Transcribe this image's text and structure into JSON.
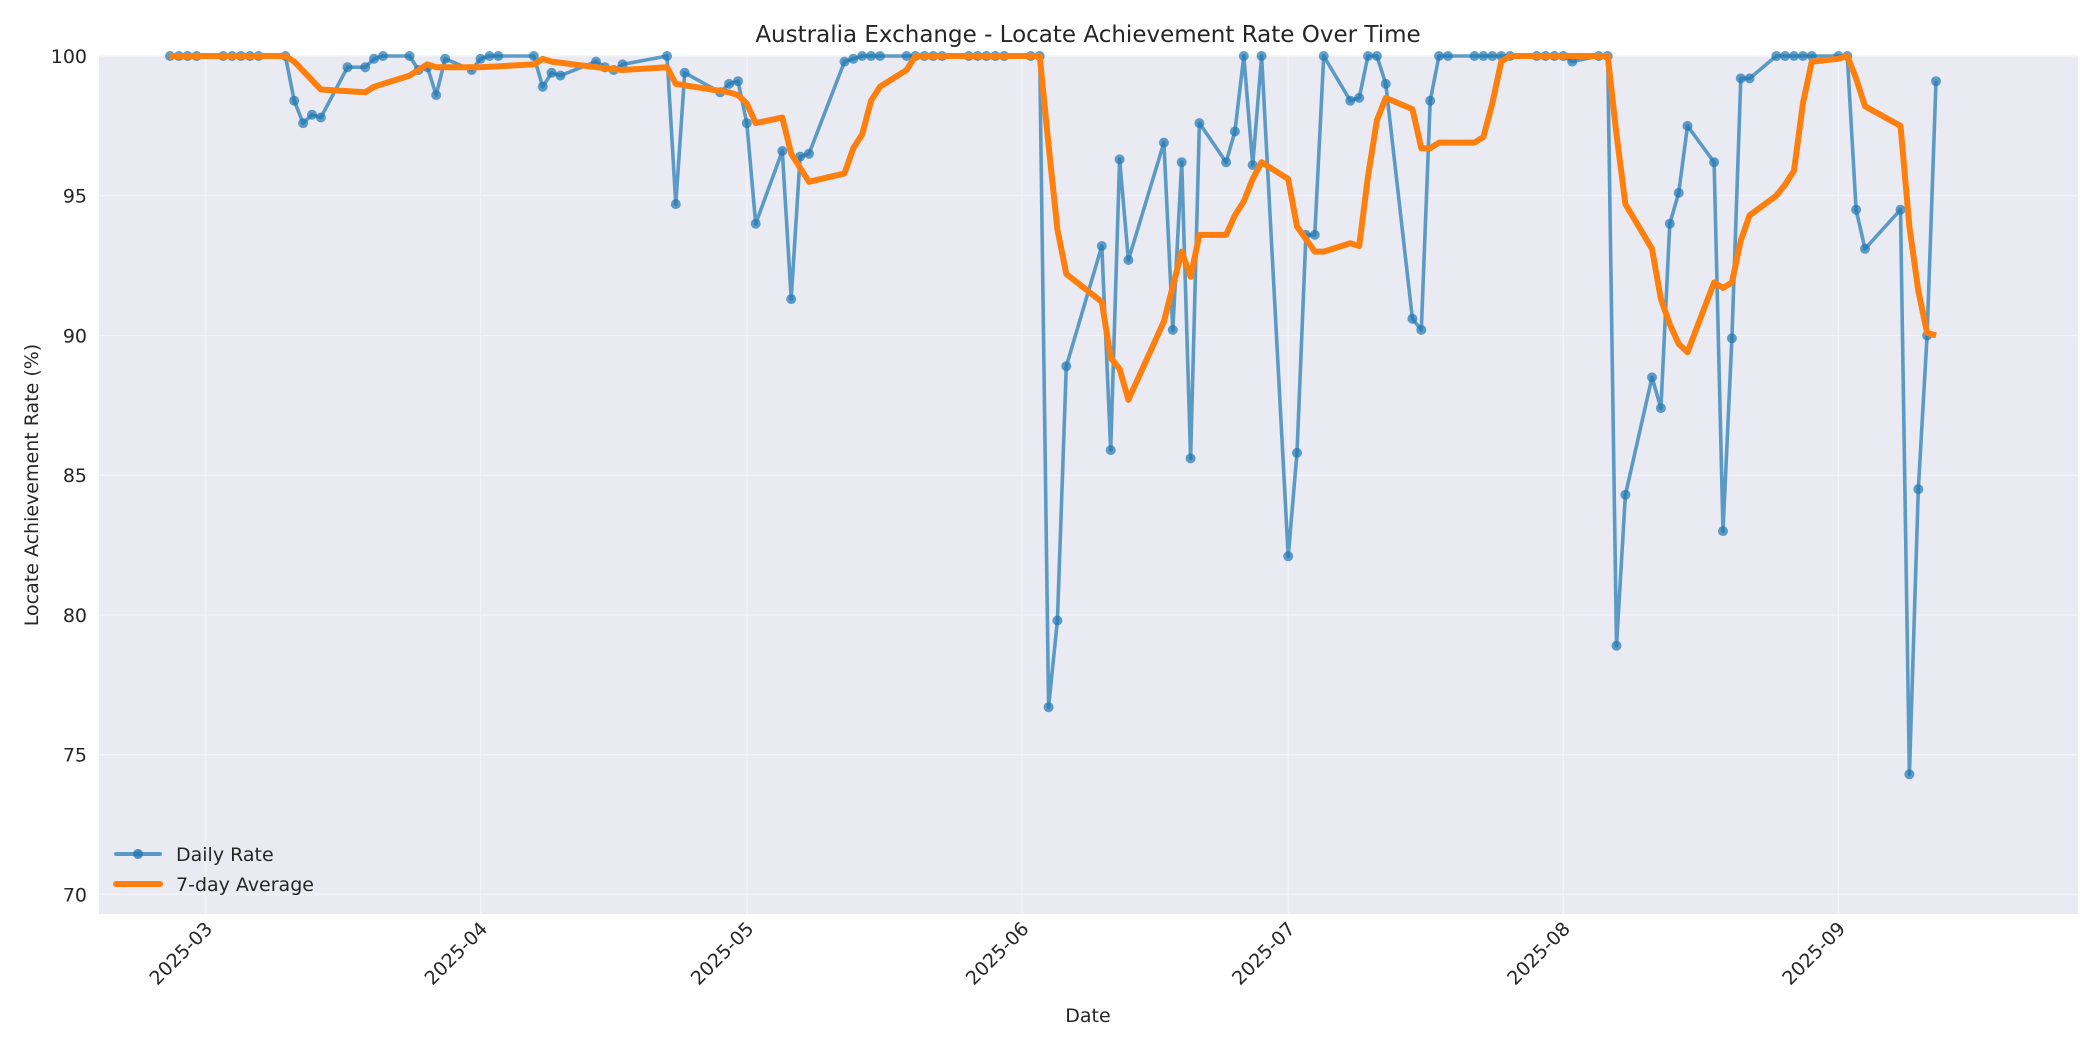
{
  "chart_data": {
    "type": "line",
    "title": "Australia Exchange - Locate Achievement Rate Over Time",
    "xlabel": "Date",
    "ylabel": "Locate Achievement Rate (%)",
    "ylim": [
      69.3,
      100
    ],
    "yticks": [
      70,
      75,
      80,
      85,
      90,
      95,
      100
    ],
    "xticks": [
      "2025-03",
      "2025-04",
      "2025-05",
      "2025-06",
      "2025-07",
      "2025-08",
      "2025-09"
    ],
    "xlim": [
      "2025-02-17",
      "2025-09-28"
    ],
    "grid": true,
    "legend_position": "lower left",
    "series": [
      {
        "name": "Daily Rate",
        "color": "#1f77b4",
        "marker": "circle",
        "points": [
          [
            "2025-02-25",
            100
          ],
          [
            "2025-02-26",
            100
          ],
          [
            "2025-02-27",
            100
          ],
          [
            "2025-02-28",
            100
          ],
          [
            "2025-03-03",
            100
          ],
          [
            "2025-03-04",
            100
          ],
          [
            "2025-03-05",
            100
          ],
          [
            "2025-03-06",
            100
          ],
          [
            "2025-03-07",
            100
          ],
          [
            "2025-03-10",
            100
          ],
          [
            "2025-03-11",
            98.4
          ],
          [
            "2025-03-12",
            97.6
          ],
          [
            "2025-03-13",
            97.9
          ],
          [
            "2025-03-14",
            97.8
          ],
          [
            "2025-03-17",
            99.6
          ],
          [
            "2025-03-19",
            99.6
          ],
          [
            "2025-03-20",
            99.9
          ],
          [
            "2025-03-21",
            100
          ],
          [
            "2025-03-24",
            100
          ],
          [
            "2025-03-25",
            99.5
          ],
          [
            "2025-03-26",
            99.6
          ],
          [
            "2025-03-27",
            98.6
          ],
          [
            "2025-03-28",
            99.9
          ],
          [
            "2025-03-31",
            99.5
          ],
          [
            "2025-04-01",
            99.9
          ],
          [
            "2025-04-02",
            100
          ],
          [
            "2025-04-03",
            100
          ],
          [
            "2025-04-07",
            100
          ],
          [
            "2025-04-08",
            98.9
          ],
          [
            "2025-04-09",
            99.4
          ],
          [
            "2025-04-10",
            99.3
          ],
          [
            "2025-04-14",
            99.8
          ],
          [
            "2025-04-15",
            99.6
          ],
          [
            "2025-04-16",
            99.5
          ],
          [
            "2025-04-17",
            99.7
          ],
          [
            "2025-04-22",
            100
          ],
          [
            "2025-04-23",
            94.7
          ],
          [
            "2025-04-24",
            99.4
          ],
          [
            "2025-04-28",
            98.7
          ],
          [
            "2025-04-29",
            99.0
          ],
          [
            "2025-04-30",
            99.1
          ],
          [
            "2025-05-01",
            97.6
          ],
          [
            "2025-05-02",
            94.0
          ],
          [
            "2025-05-05",
            96.6
          ],
          [
            "2025-05-06",
            91.3
          ],
          [
            "2025-05-07",
            96.4
          ],
          [
            "2025-05-08",
            96.5
          ],
          [
            "2025-05-12",
            99.8
          ],
          [
            "2025-05-13",
            99.9
          ],
          [
            "2025-05-14",
            100
          ],
          [
            "2025-05-15",
            100
          ],
          [
            "2025-05-16",
            100
          ],
          [
            "2025-05-19",
            100
          ],
          [
            "2025-05-20",
            100
          ],
          [
            "2025-05-21",
            100
          ],
          [
            "2025-05-22",
            100
          ],
          [
            "2025-05-23",
            100
          ],
          [
            "2025-05-26",
            100
          ],
          [
            "2025-05-27",
            100
          ],
          [
            "2025-05-28",
            100
          ],
          [
            "2025-05-29",
            100
          ],
          [
            "2025-05-30",
            100
          ],
          [
            "2025-06-02",
            100
          ],
          [
            "2025-06-03",
            100
          ],
          [
            "2025-06-04",
            76.7
          ],
          [
            "2025-06-05",
            79.8
          ],
          [
            "2025-06-06",
            88.9
          ],
          [
            "2025-06-10",
            93.2
          ],
          [
            "2025-06-11",
            85.9
          ],
          [
            "2025-06-12",
            96.3
          ],
          [
            "2025-06-13",
            92.7
          ],
          [
            "2025-06-17",
            96.9
          ],
          [
            "2025-06-18",
            90.2
          ],
          [
            "2025-06-19",
            96.2
          ],
          [
            "2025-06-20",
            85.6
          ],
          [
            "2025-06-21",
            97.6
          ],
          [
            "2025-06-24",
            96.2
          ],
          [
            "2025-06-25",
            97.3
          ],
          [
            "2025-06-26",
            100
          ],
          [
            "2025-06-27",
            96.1
          ],
          [
            "2025-06-28",
            100
          ],
          [
            "2025-07-01",
            82.1
          ],
          [
            "2025-07-02",
            85.8
          ],
          [
            "2025-07-03",
            93.6
          ],
          [
            "2025-07-04",
            93.6
          ],
          [
            "2025-07-05",
            100
          ],
          [
            "2025-07-08",
            98.4
          ],
          [
            "2025-07-09",
            98.5
          ],
          [
            "2025-07-10",
            100
          ],
          [
            "2025-07-11",
            100
          ],
          [
            "2025-07-12",
            99.0
          ],
          [
            "2025-07-15",
            90.6
          ],
          [
            "2025-07-16",
            90.2
          ],
          [
            "2025-07-17",
            98.4
          ],
          [
            "2025-07-18",
            100
          ],
          [
            "2025-07-19",
            100
          ],
          [
            "2025-07-22",
            100
          ],
          [
            "2025-07-23",
            100
          ],
          [
            "2025-07-24",
            100
          ],
          [
            "2025-07-25",
            100
          ],
          [
            "2025-07-26",
            100
          ],
          [
            "2025-07-29",
            100
          ],
          [
            "2025-07-30",
            100
          ],
          [
            "2025-07-31",
            100
          ],
          [
            "2025-08-01",
            100
          ],
          [
            "2025-08-02",
            99.8
          ],
          [
            "2025-08-05",
            100
          ],
          [
            "2025-08-06",
            100
          ],
          [
            "2025-08-07",
            78.9
          ],
          [
            "2025-08-08",
            84.3
          ],
          [
            "2025-08-11",
            88.5
          ],
          [
            "2025-08-12",
            87.4
          ],
          [
            "2025-08-13",
            94.0
          ],
          [
            "2025-08-14",
            95.1
          ],
          [
            "2025-08-15",
            97.5
          ],
          [
            "2025-08-18",
            96.2
          ],
          [
            "2025-08-19",
            83.0
          ],
          [
            "2025-08-20",
            89.9
          ],
          [
            "2025-08-21",
            99.2
          ],
          [
            "2025-08-22",
            99.2
          ],
          [
            "2025-08-25",
            100
          ],
          [
            "2025-08-26",
            100
          ],
          [
            "2025-08-27",
            100
          ],
          [
            "2025-08-28",
            100
          ],
          [
            "2025-08-29",
            100
          ],
          [
            "2025-09-01",
            100
          ],
          [
            "2025-09-02",
            100
          ],
          [
            "2025-09-03",
            94.5
          ],
          [
            "2025-09-04",
            93.1
          ],
          [
            "2025-09-08",
            94.5
          ],
          [
            "2025-09-09",
            74.3
          ],
          [
            "2025-09-10",
            84.5
          ],
          [
            "2025-09-11",
            90.0
          ],
          [
            "2025-09-12",
            99.1
          ]
        ]
      },
      {
        "name": "7-day Average",
        "color": "#ff7f0e",
        "marker": "none",
        "points": [
          [
            "2025-02-25",
            100
          ],
          [
            "2025-03-10",
            100
          ],
          [
            "2025-03-11",
            99.8
          ],
          [
            "2025-03-14",
            98.8
          ],
          [
            "2025-03-19",
            98.7
          ],
          [
            "2025-03-20",
            98.9
          ],
          [
            "2025-03-24",
            99.3
          ],
          [
            "2025-03-26",
            99.7
          ],
          [
            "2025-03-27",
            99.6
          ],
          [
            "2025-04-01",
            99.6
          ],
          [
            "2025-04-07",
            99.7
          ],
          [
            "2025-04-08",
            99.9
          ],
          [
            "2025-04-09",
            99.8
          ],
          [
            "2025-04-14",
            99.6
          ],
          [
            "2025-04-17",
            99.5
          ],
          [
            "2025-04-22",
            99.6
          ],
          [
            "2025-04-23",
            99.0
          ],
          [
            "2025-04-29",
            98.7
          ],
          [
            "2025-04-30",
            98.6
          ],
          [
            "2025-05-01",
            98.3
          ],
          [
            "2025-05-02",
            97.6
          ],
          [
            "2025-05-05",
            97.8
          ],
          [
            "2025-05-06",
            96.5
          ],
          [
            "2025-05-08",
            95.5
          ],
          [
            "2025-05-12",
            95.8
          ],
          [
            "2025-05-13",
            96.7
          ],
          [
            "2025-05-14",
            97.2
          ],
          [
            "2025-05-15",
            98.4
          ],
          [
            "2025-05-16",
            98.9
          ],
          [
            "2025-05-19",
            99.5
          ],
          [
            "2025-05-20",
            100
          ],
          [
            "2025-06-03",
            100
          ],
          [
            "2025-06-04",
            96.8
          ],
          [
            "2025-06-05",
            93.8
          ],
          [
            "2025-06-06",
            92.2
          ],
          [
            "2025-06-10",
            91.2
          ],
          [
            "2025-06-11",
            89.2
          ],
          [
            "2025-06-12",
            88.8
          ],
          [
            "2025-06-13",
            87.7
          ],
          [
            "2025-06-17",
            90.5
          ],
          [
            "2025-06-19",
            93.0
          ],
          [
            "2025-06-20",
            92.1
          ],
          [
            "2025-06-21",
            93.6
          ],
          [
            "2025-06-24",
            93.6
          ],
          [
            "2025-06-25",
            94.3
          ],
          [
            "2025-06-26",
            94.8
          ],
          [
            "2025-06-27",
            95.6
          ],
          [
            "2025-06-28",
            96.2
          ],
          [
            "2025-07-01",
            95.6
          ],
          [
            "2025-07-02",
            93.9
          ],
          [
            "2025-07-04",
            93.0
          ],
          [
            "2025-07-05",
            93.0
          ],
          [
            "2025-07-08",
            93.3
          ],
          [
            "2025-07-09",
            93.2
          ],
          [
            "2025-07-10",
            95.7
          ],
          [
            "2025-07-11",
            97.7
          ],
          [
            "2025-07-12",
            98.5
          ],
          [
            "2025-07-15",
            98.1
          ],
          [
            "2025-07-16",
            96.7
          ],
          [
            "2025-07-17",
            96.7
          ],
          [
            "2025-07-18",
            96.9
          ],
          [
            "2025-07-22",
            96.9
          ],
          [
            "2025-07-23",
            97.1
          ],
          [
            "2025-07-24",
            98.3
          ],
          [
            "2025-07-25",
            99.8
          ],
          [
            "2025-07-26",
            100
          ],
          [
            "2025-08-06",
            100
          ],
          [
            "2025-08-07",
            97.2
          ],
          [
            "2025-08-08",
            94.7
          ],
          [
            "2025-08-11",
            93.1
          ],
          [
            "2025-08-12",
            91.3
          ],
          [
            "2025-08-13",
            90.4
          ],
          [
            "2025-08-14",
            89.7
          ],
          [
            "2025-08-15",
            89.4
          ],
          [
            "2025-08-18",
            91.9
          ],
          [
            "2025-08-19",
            91.7
          ],
          [
            "2025-08-20",
            91.9
          ],
          [
            "2025-08-21",
            93.4
          ],
          [
            "2025-08-22",
            94.3
          ],
          [
            "2025-08-25",
            95.0
          ],
          [
            "2025-08-26",
            95.4
          ],
          [
            "2025-08-27",
            95.9
          ],
          [
            "2025-08-28",
            98.3
          ],
          [
            "2025-08-29",
            99.8
          ],
          [
            "2025-09-01",
            99.9
          ],
          [
            "2025-09-02",
            100
          ],
          [
            "2025-09-03",
            99.2
          ],
          [
            "2025-09-04",
            98.2
          ],
          [
            "2025-09-08",
            97.5
          ],
          [
            "2025-09-09",
            93.9
          ],
          [
            "2025-09-10",
            91.6
          ],
          [
            "2025-09-11",
            90.1
          ],
          [
            "2025-09-12",
            90.0
          ]
        ]
      }
    ]
  },
  "legend": {
    "items": [
      {
        "label": "Daily Rate",
        "color": "#1f77b4"
      },
      {
        "label": "7-day Average",
        "color": "#ff7f0e"
      }
    ]
  },
  "style": {
    "plot_bg": "#eaeaf2",
    "grid_color": "#f4f4f8"
  }
}
